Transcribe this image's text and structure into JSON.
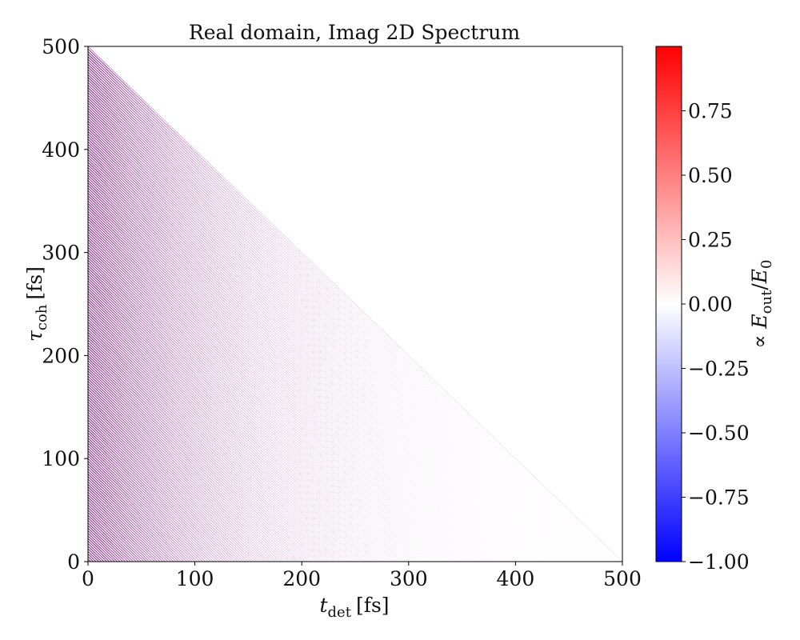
{
  "chart_data": {
    "type": "heatmap",
    "title": "Real domain, Imag 2D Spectrum",
    "xlabel": {
      "symbol": "t",
      "subscript": "det",
      "unit": "[fs]"
    },
    "ylabel": {
      "symbol": "τ",
      "subscript": "coh",
      "unit": "[fs]"
    },
    "xlim": [
      0,
      500
    ],
    "ylim": [
      0,
      500
    ],
    "x_ticks": [
      0,
      100,
      200,
      300,
      400,
      500
    ],
    "y_ticks": [
      0,
      100,
      200,
      300,
      400,
      500
    ],
    "x_tick_labels": [
      "0",
      "100",
      "200",
      "300",
      "400",
      "500"
    ],
    "y_tick_labels": [
      "0",
      "100",
      "200",
      "300",
      "400",
      "500"
    ],
    "domain": "triangle t_det + τ_coh ≤ 500",
    "fringe": {
      "color": "#800080",
      "spacing_fs": 2.5,
      "direction": "anti-diagonal",
      "max_opacity": 0.9,
      "decay_fs": 110
    },
    "colorbar": {
      "label": {
        "prefix": "∝ ",
        "numerator": "E",
        "numerator_sub": "out",
        "slash": "/",
        "denominator": "E",
        "denominator_sub": "0"
      },
      "colors": [
        "#0000ff",
        "#ffffff",
        "#ff0000"
      ],
      "vmin": -1.0,
      "vmax": 1.0,
      "ticks": [
        0.75,
        0.5,
        0.25,
        0.0,
        -0.25,
        -0.5,
        -0.75,
        -1.0
      ],
      "tick_labels": [
        "0.75",
        "0.50",
        "0.25",
        "0.00",
        "−0.25",
        "−0.50",
        "−0.75",
        "−1.00"
      ]
    }
  }
}
